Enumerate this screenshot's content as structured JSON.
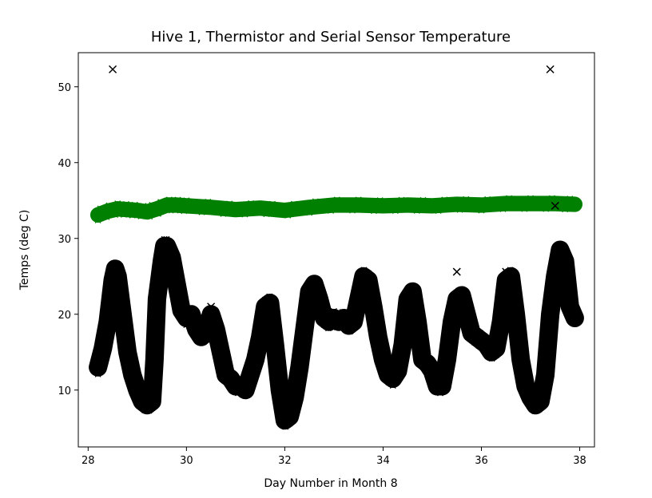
{
  "chart_data": {
    "type": "scatter",
    "title": "Hive 1, Thermistor and Serial Sensor Temperature",
    "xlabel": "Day Number in Month 8",
    "ylabel": "Temps (deg C)",
    "xlim": [
      27.8,
      38.3
    ],
    "ylim": [
      2.5,
      54.5
    ],
    "xticks": [
      28,
      30,
      32,
      34,
      36,
      38
    ],
    "yticks": [
      10,
      20,
      30,
      40,
      50
    ],
    "grid": false,
    "legend": "none",
    "series": [
      {
        "marker": "x",
        "color": "#008000",
        "band_half_width": 0.7,
        "x": [
          28.2,
          28.4,
          28.6,
          28.8,
          29.0,
          29.2,
          29.4,
          29.6,
          29.8,
          30.0,
          30.5,
          31.0,
          31.5,
          32.0,
          32.5,
          33.0,
          33.5,
          34.0,
          34.5,
          35.0,
          35.5,
          36.0,
          36.5,
          37.0,
          37.5,
          37.9
        ],
        "y": [
          33.1,
          33.6,
          33.9,
          33.8,
          33.7,
          33.5,
          33.9,
          34.4,
          34.4,
          34.3,
          34.1,
          33.8,
          34.0,
          33.7,
          34.1,
          34.4,
          34.4,
          34.3,
          34.4,
          34.3,
          34.5,
          34.4,
          34.6,
          34.6,
          34.6,
          34.5
        ]
      },
      {
        "marker": "x",
        "color": "#000000",
        "band_half_width": 0.9,
        "x": [
          28.2,
          28.3,
          28.4,
          28.5,
          28.55,
          28.6,
          28.7,
          28.8,
          28.9,
          29.0,
          29.1,
          29.2,
          29.3,
          29.35,
          29.4,
          29.5,
          29.55,
          29.6,
          29.7,
          29.8,
          29.9,
          30.0,
          30.1,
          30.2,
          30.3,
          30.4,
          30.5,
          30.6,
          30.7,
          30.8,
          30.9,
          31.0,
          31.1,
          31.2,
          31.3,
          31.4,
          31.5,
          31.6,
          31.7,
          31.8,
          31.9,
          32.0,
          32.1,
          32.2,
          32.3,
          32.4,
          32.5,
          32.6,
          32.7,
          32.8,
          32.9,
          33.0,
          33.1,
          33.2,
          33.3,
          33.4,
          33.5,
          33.6,
          33.7,
          33.8,
          33.9,
          34.0,
          34.1,
          34.2,
          34.3,
          34.4,
          34.5,
          34.6,
          34.7,
          34.8,
          34.9,
          35.0,
          35.1,
          35.2,
          35.3,
          35.4,
          35.5,
          35.6,
          35.7,
          35.8,
          35.9,
          36.0,
          36.1,
          36.2,
          36.3,
          36.4,
          36.5,
          36.6,
          36.7,
          36.8,
          36.9,
          37.0,
          37.1,
          37.2,
          37.3,
          37.4,
          37.5,
          37.6,
          37.7,
          37.8,
          37.9
        ],
        "y": [
          13.0,
          15.5,
          19.0,
          24.5,
          26.0,
          25.0,
          20.0,
          15.0,
          12.0,
          10.0,
          8.5,
          8.0,
          8.5,
          14.0,
          22.0,
          27.0,
          29.0,
          29.0,
          27.5,
          24.0,
          20.5,
          19.5,
          20.0,
          18.0,
          17.0,
          17.5,
          20.0,
          18.0,
          15.0,
          12.0,
          11.5,
          10.5,
          10.5,
          10.0,
          12.0,
          14.0,
          17.0,
          21.0,
          21.5,
          16.0,
          10.0,
          6.0,
          6.5,
          9.0,
          13.0,
          18.0,
          23.0,
          24.0,
          22.0,
          19.5,
          19.0,
          19.5,
          19.0,
          19.5,
          18.5,
          19.0,
          22.0,
          25.0,
          24.5,
          21.0,
          17.0,
          14.0,
          12.0,
          11.5,
          12.5,
          16.0,
          22.0,
          23.0,
          19.0,
          14.0,
          13.5,
          12.5,
          10.5,
          10.5,
          14.0,
          19.0,
          22.0,
          22.5,
          20.0,
          17.5,
          17.0,
          16.5,
          16.0,
          15.0,
          15.5,
          19.0,
          24.5,
          25.0,
          20.0,
          14.0,
          10.5,
          9.0,
          8.0,
          8.5,
          12.0,
          20.0,
          25.0,
          28.5,
          27.0,
          21.0,
          19.5
        ]
      }
    ],
    "outliers": {
      "marker": "x",
      "color": "#000000",
      "points": [
        [
          28.5,
          52.3
        ],
        [
          37.4,
          52.3
        ],
        [
          37.5,
          34.3
        ],
        [
          35.5,
          25.6
        ],
        [
          28.45,
          25.6
        ],
        [
          30.5,
          21.0
        ],
        [
          36.5,
          25.6
        ]
      ]
    }
  }
}
